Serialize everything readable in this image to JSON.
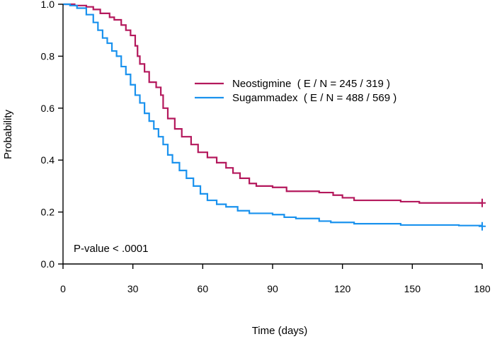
{
  "chart_data": {
    "type": "line",
    "subtype": "kaplan-meier",
    "title": "",
    "xlabel": "Time (days)",
    "ylabel": "Probability",
    "xlim": [
      0,
      180
    ],
    "ylim": [
      0,
      1
    ],
    "xticks": [
      "0",
      "30",
      "60",
      "90",
      "120",
      "150",
      "180"
    ],
    "yticks": [
      "0.0",
      "0.2",
      "0.4",
      "0.6",
      "0.8",
      "1.0"
    ],
    "grid": false,
    "legend_position": "upper-right",
    "annotation": "P-value < .0001",
    "series": [
      {
        "name": "Neostigmine",
        "legend_label": "Neostigmine  ( E / N = 245 / 319 )",
        "color": "#b4185c",
        "censor_at": 180,
        "points": [
          [
            0,
            1.0
          ],
          [
            5,
            0.995
          ],
          [
            10,
            0.99
          ],
          [
            13,
            0.98
          ],
          [
            16,
            0.965
          ],
          [
            20,
            0.95
          ],
          [
            22,
            0.94
          ],
          [
            25,
            0.92
          ],
          [
            27,
            0.9
          ],
          [
            29,
            0.88
          ],
          [
            31,
            0.84
          ],
          [
            32,
            0.8
          ],
          [
            33,
            0.77
          ],
          [
            35,
            0.74
          ],
          [
            37,
            0.7
          ],
          [
            40,
            0.68
          ],
          [
            42,
            0.65
          ],
          [
            43,
            0.6
          ],
          [
            45,
            0.56
          ],
          [
            48,
            0.52
          ],
          [
            51,
            0.49
          ],
          [
            55,
            0.46
          ],
          [
            58,
            0.43
          ],
          [
            62,
            0.41
          ],
          [
            66,
            0.39
          ],
          [
            70,
            0.37
          ],
          [
            73,
            0.35
          ],
          [
            76,
            0.33
          ],
          [
            80,
            0.31
          ],
          [
            83,
            0.3
          ],
          [
            90,
            0.295
          ],
          [
            96,
            0.28
          ],
          [
            110,
            0.275
          ],
          [
            116,
            0.265
          ],
          [
            120,
            0.255
          ],
          [
            125,
            0.245
          ],
          [
            135,
            0.245
          ],
          [
            145,
            0.24
          ],
          [
            153,
            0.235
          ],
          [
            165,
            0.235
          ],
          [
            180,
            0.235
          ]
        ]
      },
      {
        "name": "Sugammadex",
        "legend_label": "Sugammadex  ( E / N = 488 / 569 )",
        "color": "#1a92ee",
        "censor_at": 180,
        "points": [
          [
            0,
            1.0
          ],
          [
            3,
            0.995
          ],
          [
            6,
            0.985
          ],
          [
            10,
            0.96
          ],
          [
            13,
            0.93
          ],
          [
            15,
            0.9
          ],
          [
            17,
            0.87
          ],
          [
            19,
            0.85
          ],
          [
            21,
            0.82
          ],
          [
            23,
            0.8
          ],
          [
            25,
            0.76
          ],
          [
            27,
            0.73
          ],
          [
            29,
            0.69
          ],
          [
            31,
            0.65
          ],
          [
            33,
            0.62
          ],
          [
            35,
            0.58
          ],
          [
            37,
            0.55
          ],
          [
            39,
            0.52
          ],
          [
            41,
            0.49
          ],
          [
            43,
            0.46
          ],
          [
            45,
            0.42
          ],
          [
            47,
            0.39
          ],
          [
            50,
            0.36
          ],
          [
            53,
            0.33
          ],
          [
            56,
            0.3
          ],
          [
            59,
            0.27
          ],
          [
            62,
            0.245
          ],
          [
            66,
            0.23
          ],
          [
            70,
            0.22
          ],
          [
            75,
            0.205
          ],
          [
            80,
            0.195
          ],
          [
            90,
            0.19
          ],
          [
            95,
            0.18
          ],
          [
            100,
            0.175
          ],
          [
            110,
            0.165
          ],
          [
            115,
            0.16
          ],
          [
            125,
            0.155
          ],
          [
            135,
            0.155
          ],
          [
            145,
            0.15
          ],
          [
            160,
            0.15
          ],
          [
            170,
            0.148
          ],
          [
            180,
            0.145
          ]
        ]
      }
    ]
  }
}
